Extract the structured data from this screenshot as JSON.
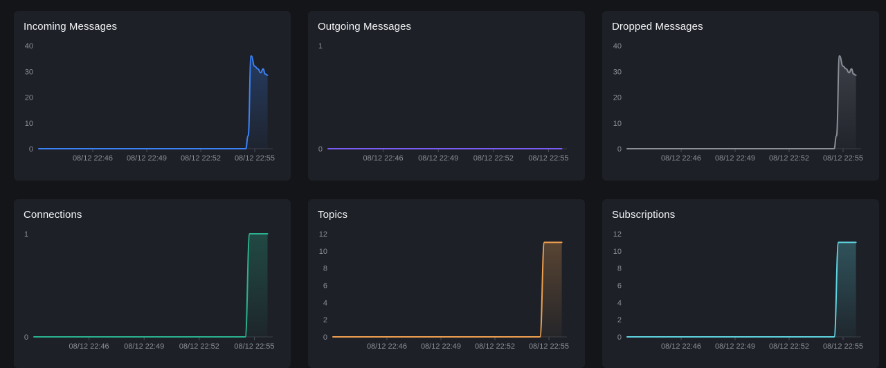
{
  "charts": [
    {
      "id": "incoming-messages",
      "title": "Incoming Messages",
      "color": "#3b82f6",
      "chart_data": {
        "type": "area",
        "title": "Incoming Messages",
        "x_ticks": [
          "08/12 22:46",
          "08/12 22:49",
          "08/12 22:52",
          "08/12 22:55"
        ],
        "y_ticks": [
          "0",
          "10",
          "20",
          "30",
          "40"
        ],
        "ylim": [
          0,
          40
        ],
        "xlim": [
          "22:43:00",
          "22:56:00"
        ],
        "series": [
          {
            "x": [
              "22:43:00",
              "22:54:30",
              "22:54:38",
              "22:54:48",
              "22:55:00",
              "22:55:10",
              "22:55:20",
              "22:55:28",
              "22:55:35",
              "22:55:43"
            ],
            "values": [
              0,
              0,
              5,
              36,
              32,
              31,
              29.5,
              31,
              29,
              28.5
            ]
          }
        ],
        "grid": false,
        "legend": "none"
      }
    },
    {
      "id": "outgoing-messages",
      "title": "Outgoing Messages",
      "color": "#7c5cf5",
      "chart_data": {
        "type": "line",
        "title": "Outgoing Messages",
        "x_ticks": [
          "08/12 22:46",
          "08/12 22:49",
          "08/12 22:52",
          "08/12 22:55"
        ],
        "y_ticks": [
          "0",
          "1"
        ],
        "ylim": [
          0,
          1
        ],
        "xlim": [
          "22:43:00",
          "22:56:00"
        ],
        "series": [
          {
            "x": [
              "22:43:00",
              "22:55:43"
            ],
            "values": [
              0,
              0
            ]
          }
        ],
        "grid": false,
        "legend": "none"
      }
    },
    {
      "id": "dropped-messages",
      "title": "Dropped Messages",
      "color": "#8b8f98",
      "chart_data": {
        "type": "area",
        "title": "Dropped Messages",
        "x_ticks": [
          "08/12 22:46",
          "08/12 22:49",
          "08/12 22:52",
          "08/12 22:55"
        ],
        "y_ticks": [
          "0",
          "10",
          "20",
          "30",
          "40"
        ],
        "ylim": [
          0,
          40
        ],
        "xlim": [
          "22:43:00",
          "22:56:00"
        ],
        "series": [
          {
            "x": [
              "22:43:00",
              "22:54:30",
              "22:54:38",
              "22:54:48",
              "22:55:00",
              "22:55:10",
              "22:55:20",
              "22:55:28",
              "22:55:35",
              "22:55:43"
            ],
            "values": [
              0,
              0,
              5,
              36,
              32,
              31,
              29.5,
              31,
              29,
              28.5
            ]
          }
        ],
        "grid": false,
        "legend": "none"
      }
    },
    {
      "id": "connections",
      "title": "Connections",
      "color": "#2bb38f",
      "chart_data": {
        "type": "area",
        "title": "Connections",
        "x_ticks": [
          "08/12 22:46",
          "08/12 22:49",
          "08/12 22:52",
          "08/12 22:55"
        ],
        "y_ticks": [
          "0",
          "1"
        ],
        "ylim": [
          0,
          1
        ],
        "xlim": [
          "22:43:00",
          "22:56:00"
        ],
        "series": [
          {
            "x": [
              "22:43:00",
              "22:54:30",
              "22:54:45",
              "22:55:43"
            ],
            "values": [
              0,
              0,
              1,
              1
            ]
          }
        ],
        "grid": false,
        "legend": "none"
      }
    },
    {
      "id": "topics",
      "title": "Topics",
      "color": "#f0a050",
      "chart_data": {
        "type": "area",
        "title": "Topics",
        "x_ticks": [
          "08/12 22:46",
          "08/12 22:49",
          "08/12 22:52",
          "08/12 22:55"
        ],
        "y_ticks": [
          "0",
          "2",
          "4",
          "6",
          "8",
          "10",
          "12"
        ],
        "ylim": [
          0,
          12
        ],
        "xlim": [
          "22:43:00",
          "22:56:00"
        ],
        "series": [
          {
            "x": [
              "22:43:00",
              "22:54:30",
              "22:54:45",
              "22:55:43"
            ],
            "values": [
              0,
              0,
              11,
              11
            ]
          }
        ],
        "grid": false,
        "legend": "none"
      }
    },
    {
      "id": "subscriptions",
      "title": "Subscriptions",
      "color": "#5fd3e0",
      "chart_data": {
        "type": "area",
        "title": "Subscriptions",
        "x_ticks": [
          "08/12 22:46",
          "08/12 22:49",
          "08/12 22:52",
          "08/12 22:55"
        ],
        "y_ticks": [
          "0",
          "2",
          "4",
          "6",
          "8",
          "10",
          "12"
        ],
        "ylim": [
          0,
          12
        ],
        "xlim": [
          "22:43:00",
          "22:56:00"
        ],
        "series": [
          {
            "x": [
              "22:43:00",
              "22:54:30",
              "22:54:45",
              "22:55:43"
            ],
            "values": [
              0,
              0,
              11,
              11
            ]
          }
        ],
        "grid": false,
        "legend": "none"
      }
    }
  ]
}
